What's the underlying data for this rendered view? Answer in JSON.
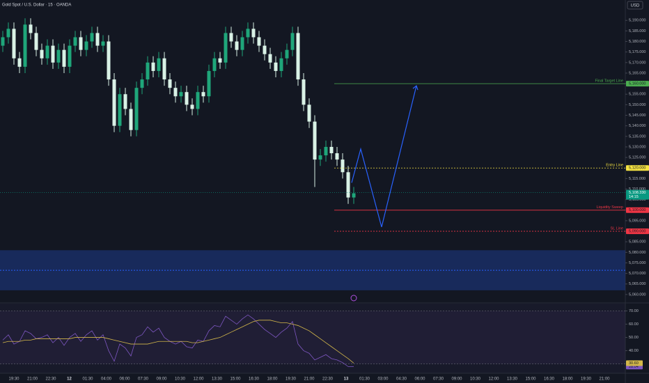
{
  "chart_data": {
    "type": "candlestick",
    "title": "Gold Spot / U.S. Dollar · 15 · OANDA",
    "currency": "USD",
    "open": [
      5178,
      5182,
      5186,
      5172,
      5168,
      5188,
      5184,
      5176,
      5172,
      5178,
      5170,
      5176,
      5168,
      5178,
      5182,
      5176,
      5180,
      5184,
      5178,
      5180,
      5162,
      5140,
      5155,
      5148,
      5138,
      5158,
      5162,
      5170,
      5166,
      5172,
      5162,
      5158,
      5154,
      5156,
      5150,
      5148,
      5156,
      5154,
      5166,
      5172,
      5170,
      5184,
      5180,
      5176,
      5182,
      5186,
      5182,
      5178,
      5174,
      5170,
      5166,
      5172,
      5176,
      5184,
      5162,
      5150,
      5142,
      5124,
      5126,
      5130,
      5127,
      5124,
      5118,
      5106
    ],
    "high": [
      5185,
      5189,
      5189,
      5175,
      5191,
      5191,
      5187,
      5179,
      5181,
      5181,
      5179,
      5179,
      5181,
      5185,
      5185,
      5183,
      5187,
      5187,
      5183,
      5183,
      5165,
      5158,
      5158,
      5151,
      5161,
      5165,
      5173,
      5173,
      5175,
      5175,
      5165,
      5161,
      5159,
      5159,
      5153,
      5159,
      5159,
      5169,
      5175,
      5175,
      5187,
      5187,
      5183,
      5185,
      5189,
      5189,
      5185,
      5181,
      5177,
      5173,
      5175,
      5179,
      5187,
      5187,
      5165,
      5153,
      5145,
      5129,
      5133,
      5133,
      5130,
      5127,
      5121,
      5111
    ],
    "low": [
      5175,
      5179,
      5169,
      5165,
      5165,
      5181,
      5173,
      5169,
      5169,
      5167,
      5167,
      5165,
      5165,
      5175,
      5173,
      5173,
      5177,
      5175,
      5175,
      5159,
      5137,
      5137,
      5145,
      5135,
      5135,
      5155,
      5159,
      5163,
      5163,
      5159,
      5155,
      5151,
      5151,
      5147,
      5145,
      5145,
      5151,
      5151,
      5163,
      5167,
      5167,
      5177,
      5173,
      5173,
      5179,
      5179,
      5175,
      5171,
      5167,
      5163,
      5163,
      5169,
      5173,
      5159,
      5147,
      5139,
      5111,
      5121,
      5123,
      5124,
      5121,
      5115,
      5103,
      5103
    ],
    "close": [
      5182,
      5186,
      5172,
      5168,
      5188,
      5184,
      5176,
      5172,
      5178,
      5170,
      5176,
      5168,
      5178,
      5182,
      5176,
      5180,
      5184,
      5178,
      5180,
      5162,
      5140,
      5155,
      5148,
      5138,
      5158,
      5162,
      5170,
      5166,
      5172,
      5162,
      5158,
      5154,
      5156,
      5150,
      5148,
      5156,
      5154,
      5166,
      5172,
      5170,
      5184,
      5180,
      5176,
      5182,
      5186,
      5182,
      5178,
      5174,
      5170,
      5166,
      5172,
      5176,
      5184,
      5162,
      5150,
      5142,
      5124,
      5126,
      5130,
      5127,
      5124,
      5118,
      5106,
      5108
    ],
    "up_color": "#1fa67a",
    "down_color": "#d9f2e6",
    "ylim": [
      5057,
      5199
    ],
    "yticks": [
      {
        "value": 5060,
        "label": "5,060.000"
      },
      {
        "value": 5065,
        "label": "5,065.000"
      },
      {
        "value": 5070,
        "label": "5,070.000"
      },
      {
        "value": 5075,
        "label": "5,075.000"
      },
      {
        "value": 5080,
        "label": "5,080.000"
      },
      {
        "value": 5085,
        "label": "5,085.000"
      },
      {
        "value": 5090,
        "label": "5,090.000"
      },
      {
        "value": 5095,
        "label": "5,095.000"
      },
      {
        "value": 5100,
        "label": "5,100.000"
      },
      {
        "value": 5105,
        "label": "5,105.000"
      },
      {
        "value": 5110,
        "label": "5,110.000"
      },
      {
        "value": 5115,
        "label": "5,115.000"
      },
      {
        "value": 5120,
        "label": "5,120.000"
      },
      {
        "value": 5125,
        "label": "5,125.000"
      },
      {
        "value": 5130,
        "label": "5,130.000"
      },
      {
        "value": 5135,
        "label": "5,135.000"
      },
      {
        "value": 5140,
        "label": "5,140.000"
      },
      {
        "value": 5145,
        "label": "5,145.000"
      },
      {
        "value": 5150,
        "label": "5,150.000"
      },
      {
        "value": 5155,
        "label": "5,155.000"
      },
      {
        "value": 5160,
        "label": "5,160.000"
      },
      {
        "value": 5165,
        "label": "5,165.000"
      },
      {
        "value": 5170,
        "label": "5,170.000"
      },
      {
        "value": 5175,
        "label": "5,175.000"
      },
      {
        "value": 5180,
        "label": "5,180.000"
      },
      {
        "value": 5185,
        "label": "5,185.000"
      },
      {
        "value": 5190,
        "label": "5,190.000"
      }
    ],
    "xtick_labels": [
      "19:30",
      "21:00",
      "22:30",
      "12",
      "01:30",
      "04:00",
      "06:00",
      "07:30",
      "09:00",
      "10:30",
      "12:00",
      "13:30",
      "15:00",
      "16:30",
      "18:00",
      "19:30",
      "21:00",
      "22:30",
      "13",
      "01:30",
      "03:00",
      "04:30",
      "06:00",
      "07:30",
      "09:00",
      "10:30",
      "12:00",
      "13:30",
      "15:00",
      "16:30",
      "18:00",
      "19:30",
      "21:00"
    ],
    "levels": [
      {
        "label": "Final Target Line",
        "value": 5160,
        "value_label": "5,160.000",
        "color": "#4caf50",
        "dashed": false
      },
      {
        "label": "Entry Line",
        "value": 5120,
        "value_label": "5,120.000",
        "color": "#f5e342",
        "dashed": true
      },
      {
        "label": "Liquidity Sweep",
        "value": 5100,
        "value_label": "5,100.000",
        "color": "#f23645",
        "dashed": false
      },
      {
        "label": "SL Line",
        "value": 5090,
        "value_label": "5,090.000",
        "color": "#f23645",
        "dashed": true
      }
    ],
    "last_price": {
      "value": 5108.33,
      "value_label": "5,108.330",
      "countdown": "14:15",
      "color": "#089981"
    },
    "projection": {
      "values": [
        5113,
        5129,
        5092,
        5159
      ],
      "color": "#2962ff"
    },
    "zone": {
      "values": [
        5062,
        5081
      ],
      "color": "#1e3a8a"
    },
    "rsi": {
      "ylim": [
        24,
        75
      ],
      "yticks": [
        {
          "value": 70,
          "label": "70.00"
        },
        {
          "value": 60,
          "label": "60.00"
        },
        {
          "value": 50,
          "label": "50.00"
        },
        {
          "value": 40,
          "label": "40.00"
        }
      ],
      "bands": [
        70,
        30
      ],
      "series": [
        {
          "color": "#7e57c2",
          "values": [
            48,
            52,
            45,
            47,
            55,
            53,
            49,
            50,
            52,
            46,
            50,
            44,
            50,
            53,
            47,
            52,
            55,
            48,
            52,
            40,
            32,
            45,
            42,
            36,
            50,
            52,
            58,
            54,
            57,
            50,
            47,
            45,
            47,
            43,
            42,
            48,
            47,
            55,
            59,
            58,
            66,
            63,
            60,
            64,
            67,
            64,
            60,
            56,
            53,
            50,
            54,
            57,
            62,
            45,
            40,
            38,
            33,
            35,
            37,
            34,
            33,
            31,
            28,
            28.04
          ],
          "value_label": "28.04"
        },
        {
          "color": "#d4b84a",
          "values": [
            46,
            47,
            47,
            47,
            48,
            48,
            49,
            49,
            49,
            49,
            49,
            49,
            49,
            50,
            50,
            50,
            50,
            50,
            50,
            49,
            48,
            47,
            46,
            45,
            45,
            45,
            45,
            46,
            47,
            47,
            47,
            47,
            47,
            47,
            46,
            46,
            47,
            48,
            49,
            50,
            52,
            54,
            56,
            58,
            60,
            62,
            63,
            63,
            63,
            62,
            61,
            61,
            60,
            59,
            57,
            55,
            52,
            49,
            46,
            43,
            40,
            37,
            34,
            30.6
          ],
          "value_label": "30.60"
        }
      ]
    }
  }
}
